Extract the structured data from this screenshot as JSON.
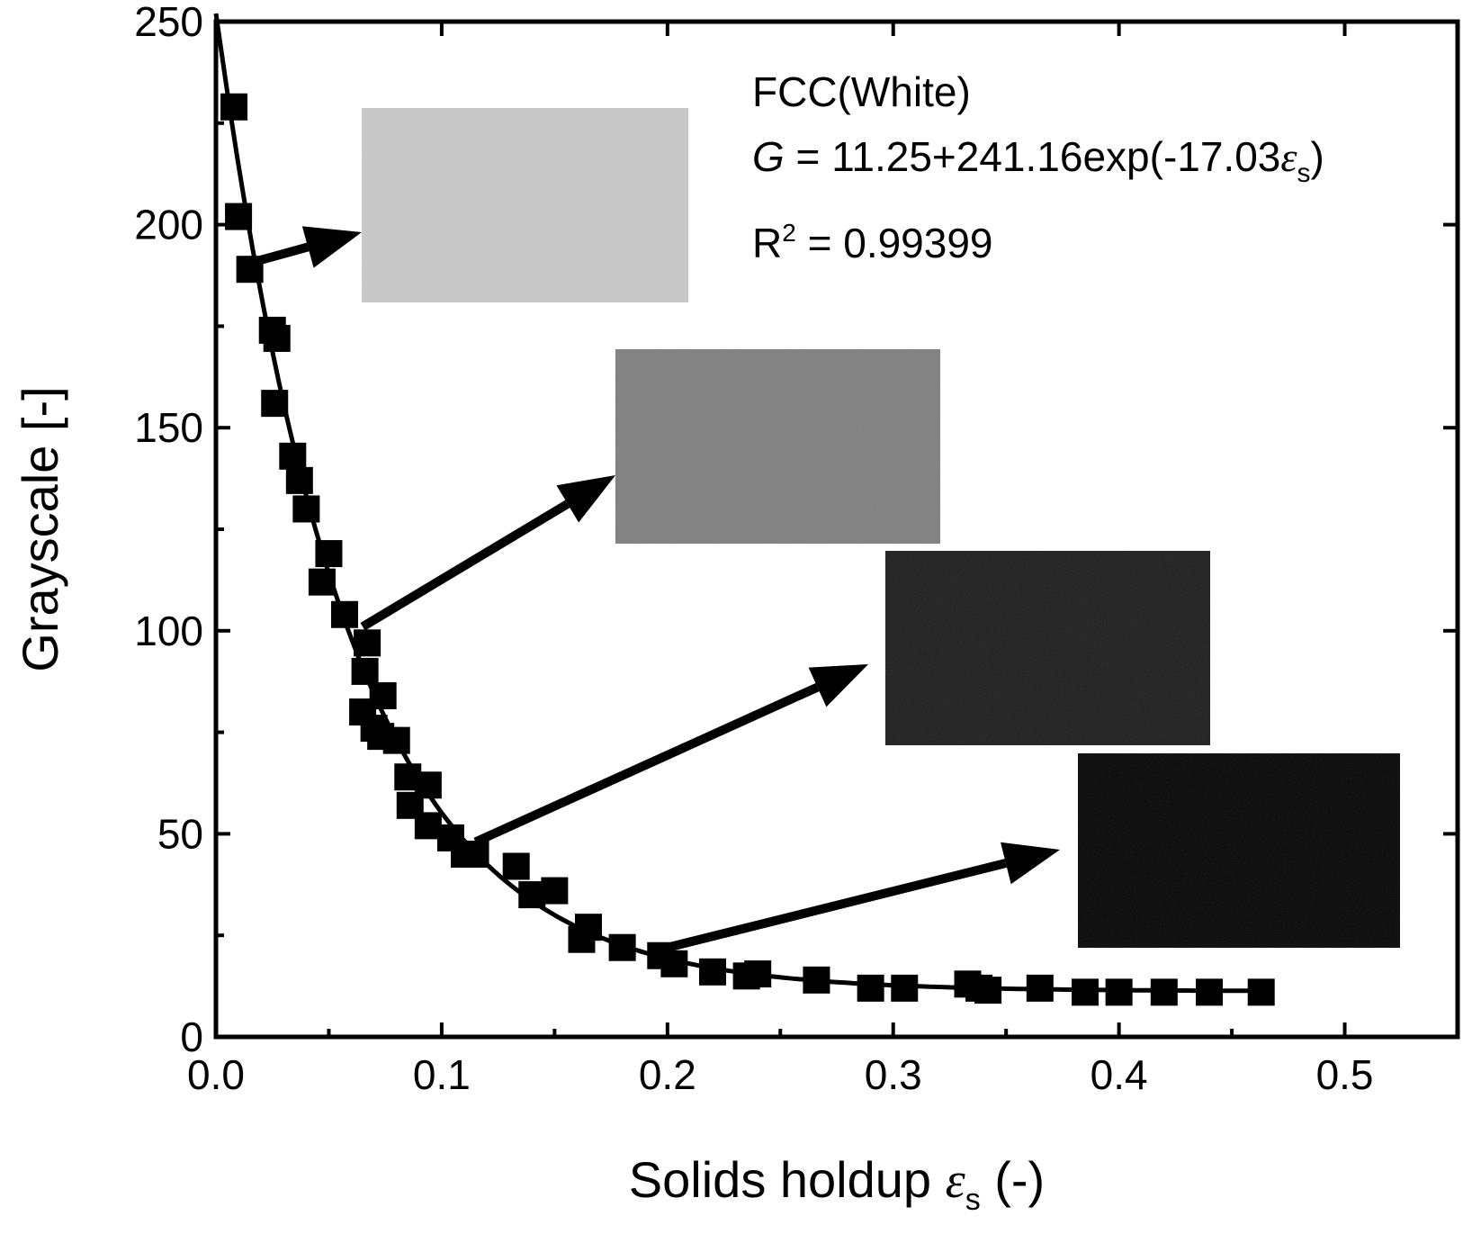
{
  "chart_data": {
    "type": "scatter",
    "xlabel": "Solids holdup",
    "xlabel_symbol": "ε",
    "xlabel_subscript": "s",
    "xlabel_unit": "(-)",
    "ylabel": "Grayscale [-]",
    "xlim": [
      0.0,
      0.55
    ],
    "ylim": [
      0,
      250
    ],
    "x_ticks": [
      0.0,
      0.1,
      0.2,
      0.3,
      0.4,
      0.5
    ],
    "x_tick_labels": [
      "0.0",
      "0.1",
      "0.2",
      "0.3",
      "0.4",
      "0.5"
    ],
    "y_ticks": [
      0,
      50,
      100,
      150,
      200,
      250
    ],
    "y_tick_labels": [
      "0",
      "50",
      "100",
      "150",
      "200",
      "250"
    ],
    "grid": false,
    "annotations": {
      "material": "FCC(White)",
      "equation_var": "G",
      "equation_text": " = 11.25+241.16exp(-17.03",
      "equation_symbol": "ε",
      "equation_subscript": "s",
      "equation_close": ")",
      "r2_label": "R",
      "r2_sup": "2",
      "r2_value": " = 0.99399"
    },
    "fit": {
      "a": 11.25,
      "b": 241.16,
      "k": -17.03,
      "x_range": [
        0.0,
        0.465
      ]
    },
    "series": [
      {
        "marker": "filled-square",
        "color": "#000000",
        "x": [
          0.008,
          0.01,
          0.015,
          0.025,
          0.027,
          0.026,
          0.034,
          0.037,
          0.04,
          0.05,
          0.047,
          0.057,
          0.067,
          0.066,
          0.065,
          0.074,
          0.07,
          0.073,
          0.08,
          0.085,
          0.094,
          0.086,
          0.094,
          0.104,
          0.11,
          0.115,
          0.133,
          0.14,
          0.15,
          0.165,
          0.162,
          0.18,
          0.197,
          0.203,
          0.22,
          0.235,
          0.24,
          0.266,
          0.29,
          0.305,
          0.333,
          0.338,
          0.342,
          0.365,
          0.385,
          0.4,
          0.42,
          0.44,
          0.463
        ],
        "y": [
          229,
          202,
          189,
          174,
          172,
          156,
          143,
          137,
          130,
          119,
          112,
          104,
          97,
          90,
          80,
          84,
          76,
          74,
          73,
          64,
          62,
          57,
          52,
          49,
          45,
          45,
          42,
          35,
          36,
          27,
          24,
          22,
          20,
          18,
          16,
          15,
          15.5,
          14,
          12,
          12,
          13,
          12,
          11.5,
          12,
          11,
          11,
          11,
          11,
          11
        ]
      }
    ],
    "insets": [
      {
        "shade": "#c9c9c9",
        "arrow_from": [
          0.018,
          191
        ]
      },
      {
        "shade": "#808080",
        "arrow_from": [
          0.065,
          101
        ]
      },
      {
        "shade": "#1f1f1f",
        "arrow_from": [
          0.115,
          48
        ]
      },
      {
        "shade": "#070707",
        "arrow_from": [
          0.2,
          22
        ]
      }
    ]
  }
}
